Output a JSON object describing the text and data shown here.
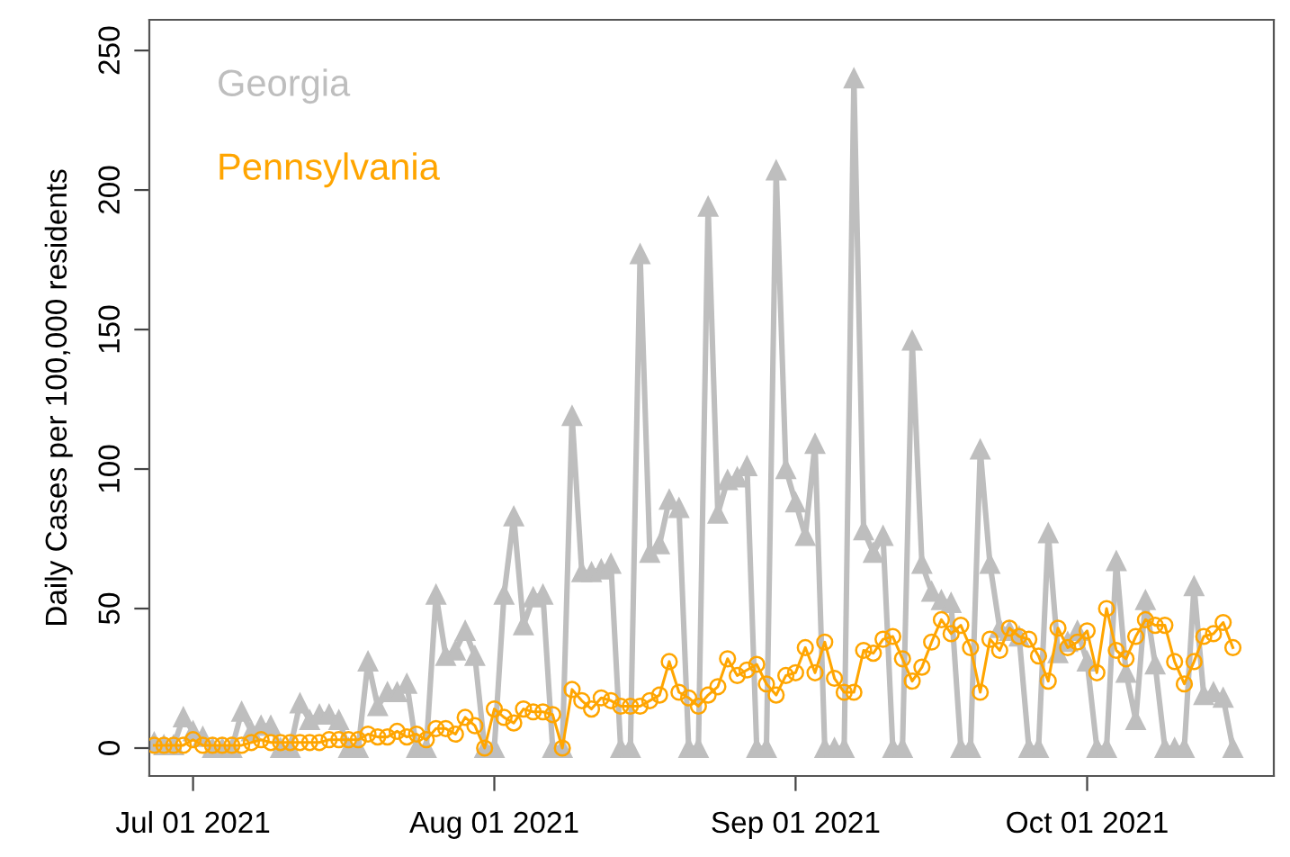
{
  "chart_data": {
    "type": "line",
    "ylabel": "Daily Cases per 100,000 residents",
    "x": [
      "2021-06-27",
      "2021-06-28",
      "2021-06-29",
      "2021-06-30",
      "2021-07-01",
      "2021-07-02",
      "2021-07-03",
      "2021-07-04",
      "2021-07-05",
      "2021-07-06",
      "2021-07-07",
      "2021-07-08",
      "2021-07-09",
      "2021-07-10",
      "2021-07-11",
      "2021-07-12",
      "2021-07-13",
      "2021-07-14",
      "2021-07-15",
      "2021-07-16",
      "2021-07-17",
      "2021-07-18",
      "2021-07-19",
      "2021-07-20",
      "2021-07-21",
      "2021-07-22",
      "2021-07-23",
      "2021-07-24",
      "2021-07-25",
      "2021-07-26",
      "2021-07-27",
      "2021-07-28",
      "2021-07-29",
      "2021-07-30",
      "2021-07-31",
      "2021-08-01",
      "2021-08-02",
      "2021-08-03",
      "2021-08-04",
      "2021-08-05",
      "2021-08-06",
      "2021-08-07",
      "2021-08-08",
      "2021-08-09",
      "2021-08-10",
      "2021-08-11",
      "2021-08-12",
      "2021-08-13",
      "2021-08-14",
      "2021-08-15",
      "2021-08-16",
      "2021-08-17",
      "2021-08-18",
      "2021-08-19",
      "2021-08-20",
      "2021-08-21",
      "2021-08-22",
      "2021-08-23",
      "2021-08-24",
      "2021-08-25",
      "2021-08-26",
      "2021-08-27",
      "2021-08-28",
      "2021-08-29",
      "2021-08-30",
      "2021-08-31",
      "2021-09-01",
      "2021-09-02",
      "2021-09-03",
      "2021-09-04",
      "2021-09-05",
      "2021-09-06",
      "2021-09-07",
      "2021-09-08",
      "2021-09-09",
      "2021-09-10",
      "2021-09-11",
      "2021-09-12",
      "2021-09-13",
      "2021-09-14",
      "2021-09-15",
      "2021-09-16",
      "2021-09-17",
      "2021-09-18",
      "2021-09-19",
      "2021-09-20",
      "2021-09-21",
      "2021-09-22",
      "2021-09-23",
      "2021-09-24",
      "2021-09-25",
      "2021-09-26",
      "2021-09-27",
      "2021-09-28",
      "2021-09-29",
      "2021-09-30",
      "2021-10-01",
      "2021-10-02",
      "2021-10-03",
      "2021-10-04",
      "2021-10-05",
      "2021-10-06",
      "2021-10-07",
      "2021-10-08",
      "2021-10-09",
      "2021-10-10",
      "2021-10-11",
      "2021-10-12",
      "2021-10-13",
      "2021-10-14",
      "2021-10-15",
      "2021-10-16"
    ],
    "series": [
      {
        "name": "Georgia",
        "color": "#bebebe",
        "marker": "triangle",
        "values": [
          2,
          1,
          1,
          11,
          6,
          4,
          0,
          0,
          0,
          13,
          6,
          8,
          8,
          0,
          0,
          16,
          10,
          12,
          12,
          10,
          0,
          0,
          31,
          15,
          20,
          20,
          23,
          0,
          0,
          55,
          33,
          35,
          42,
          33,
          0,
          0,
          55,
          83,
          44,
          54,
          55,
          0,
          0,
          119,
          63,
          63,
          64,
          66,
          0,
          0,
          177,
          70,
          73,
          89,
          86,
          0,
          0,
          194,
          84,
          96,
          97,
          101,
          0,
          0,
          207,
          100,
          88,
          76,
          109,
          0,
          0,
          0,
          240,
          78,
          70,
          76,
          0,
          0,
          146,
          66,
          56,
          53,
          52,
          0,
          0,
          107,
          66,
          43,
          42,
          40,
          0,
          0,
          77,
          34,
          38,
          42,
          31,
          0,
          0,
          67,
          27,
          10,
          53,
          30,
          0,
          0,
          0,
          58,
          19,
          20,
          18,
          0
        ]
      },
      {
        "name": "Pennsylvania",
        "color": "#ffa500",
        "marker": "circle",
        "values": [
          1,
          1,
          1,
          1,
          3,
          1,
          1,
          1,
          1,
          1,
          2,
          3,
          2,
          2,
          2,
          2,
          2,
          2,
          3,
          3,
          3,
          3,
          5,
          4,
          4,
          6,
          4,
          5,
          3,
          7,
          7,
          5,
          11,
          8,
          0,
          14,
          11,
          9,
          14,
          13,
          13,
          12,
          0,
          21,
          17,
          14,
          18,
          17,
          15,
          15,
          15,
          17,
          19,
          31,
          20,
          18,
          15,
          19,
          22,
          32,
          26,
          28,
          30,
          23,
          19,
          26,
          27,
          36,
          27,
          38,
          25,
          20,
          20,
          35,
          34,
          39,
          40,
          32,
          24,
          29,
          38,
          46,
          41,
          44,
          36,
          20,
          39,
          35,
          43,
          40,
          39,
          33,
          24,
          43,
          36,
          38,
          42,
          27,
          50,
          35,
          32,
          40,
          46,
          44,
          44,
          31,
          23,
          31,
          40,
          41,
          45,
          36
        ]
      }
    ],
    "xlim": [
      "2021-06-26T12:00",
      "2021-10-20T05:00"
    ],
    "xticks": [
      {
        "value": "2021-07-01",
        "label": "Jul 01 2021"
      },
      {
        "value": "2021-08-01",
        "label": "Aug 01 2021"
      },
      {
        "value": "2021-09-01",
        "label": "Sep 01 2021"
      },
      {
        "value": "2021-10-01",
        "label": "Oct 01 2021"
      }
    ],
    "ylim": [
      -10,
      261
    ],
    "yticks": [
      0,
      50,
      100,
      150,
      200,
      250
    ],
    "grid": false,
    "legend": "top left",
    "line_style": "solid"
  }
}
